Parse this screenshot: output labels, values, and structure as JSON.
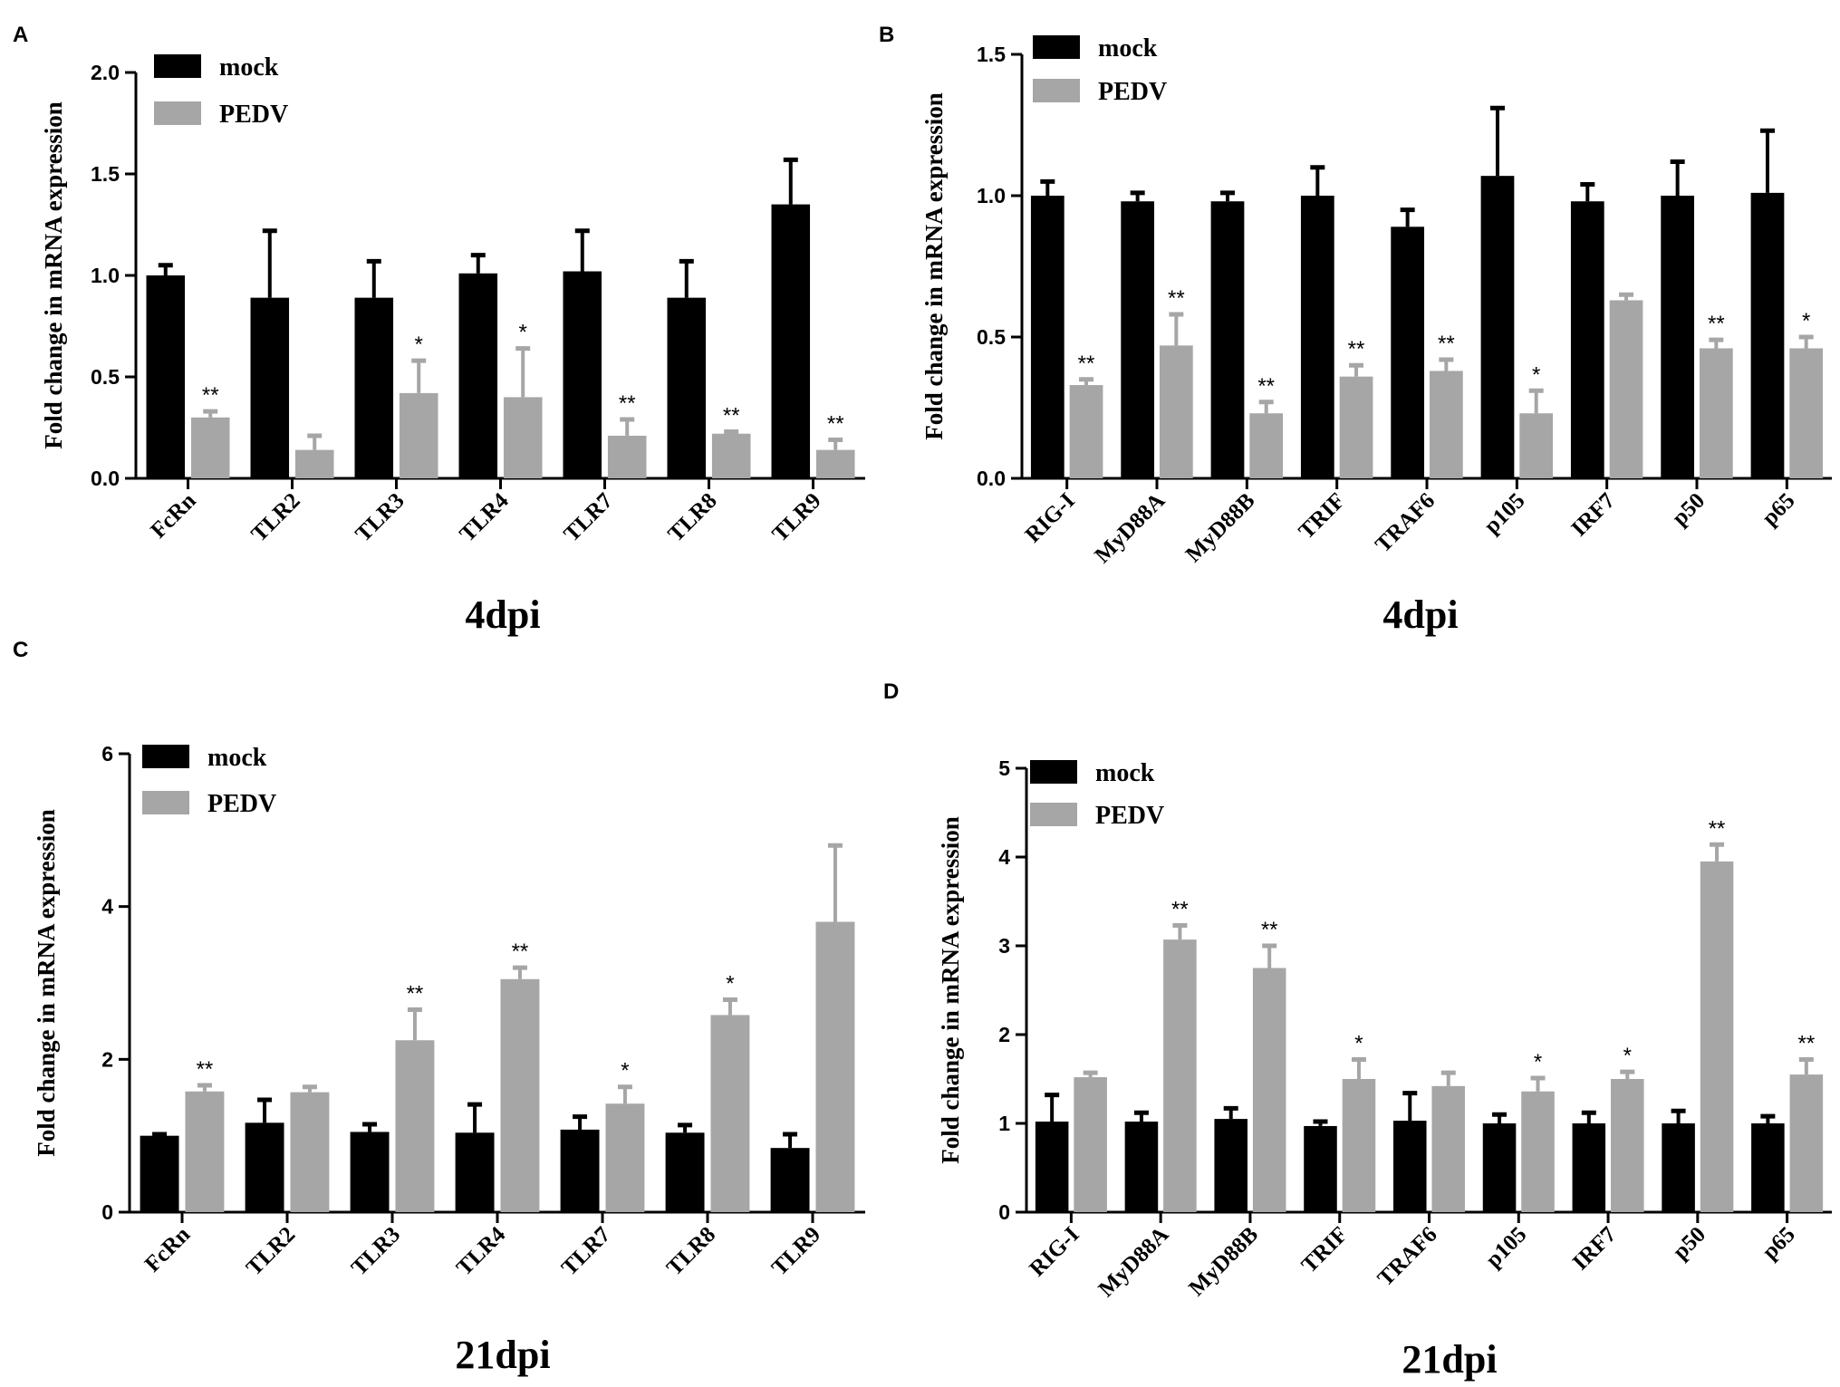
{
  "colors": {
    "mock": "#000000",
    "pedv": "#a6a6a6"
  },
  "chart_data": [
    {
      "panel": "A",
      "type": "bar",
      "title": "",
      "xlabel": "4dpi",
      "ylabel": "Fold change in mRNA expression",
      "ylim": [
        0,
        2.0
      ],
      "yticks": [
        "0.0",
        "0.5",
        "1.0",
        "1.5",
        "2.0"
      ],
      "legend": [
        "mock",
        "PEDV"
      ],
      "categories": [
        "FcRn",
        "TLR2",
        "TLR3",
        "TLR4",
        "TLR7",
        "TLR8",
        "TLR9"
      ],
      "series": [
        {
          "name": "mock",
          "values": [
            1.0,
            0.89,
            0.89,
            1.01,
            1.02,
            0.89,
            1.35
          ],
          "errors": [
            0.05,
            0.33,
            0.18,
            0.09,
            0.2,
            0.18,
            0.22
          ]
        },
        {
          "name": "PEDV",
          "values": [
            0.3,
            0.14,
            0.42,
            0.4,
            0.21,
            0.22,
            0.14
          ],
          "errors": [
            0.03,
            0.07,
            0.16,
            0.24,
            0.08,
            0.01,
            0.05
          ],
          "significance": [
            "**",
            "",
            "*",
            "*",
            "**",
            "**",
            "**"
          ]
        }
      ]
    },
    {
      "panel": "B",
      "type": "bar",
      "title": "",
      "xlabel": "4dpi",
      "ylabel": "Fold change in mRNA expression",
      "ylim": [
        0,
        1.5
      ],
      "yticks": [
        "0.0",
        "0.5",
        "1.0",
        "1.5"
      ],
      "legend": [
        "mock",
        "PEDV"
      ],
      "categories": [
        "RIG-I",
        "MyD88A",
        "MyD88B",
        "TRIF",
        "TRAF6",
        "p105",
        "IRF7",
        "p50",
        "p65"
      ],
      "series": [
        {
          "name": "mock",
          "values": [
            1.0,
            0.98,
            0.98,
            1.0,
            0.89,
            1.07,
            0.98,
            1.0,
            1.01
          ],
          "errors": [
            0.05,
            0.03,
            0.03,
            0.1,
            0.06,
            0.24,
            0.06,
            0.12,
            0.22
          ]
        },
        {
          "name": "PEDV",
          "values": [
            0.33,
            0.47,
            0.23,
            0.36,
            0.38,
            0.23,
            0.63,
            0.46,
            0.46
          ],
          "errors": [
            0.02,
            0.11,
            0.04,
            0.04,
            0.04,
            0.08,
            0.02,
            0.03,
            0.04
          ],
          "significance": [
            "**",
            "**",
            "**",
            "**",
            "**",
            "*",
            "",
            "**",
            "*"
          ]
        }
      ]
    },
    {
      "panel": "C",
      "type": "bar",
      "title": "",
      "xlabel": "21dpi",
      "ylabel": "Fold change in mRNA expression",
      "ylim": [
        0,
        6
      ],
      "yticks": [
        "0",
        "2",
        "4",
        "6"
      ],
      "legend": [
        "mock",
        "PEDV"
      ],
      "categories": [
        "FcRn",
        "TLR2",
        "TLR3",
        "TLR4",
        "TLR7",
        "TLR8",
        "TLR9"
      ],
      "series": [
        {
          "name": "mock",
          "values": [
            1.0,
            1.17,
            1.05,
            1.04,
            1.08,
            1.04,
            0.84
          ],
          "errors": [
            0.02,
            0.3,
            0.1,
            0.37,
            0.17,
            0.1,
            0.18
          ]
        },
        {
          "name": "PEDV",
          "values": [
            1.58,
            1.57,
            2.25,
            3.05,
            1.42,
            2.58,
            3.8
          ],
          "errors": [
            0.08,
            0.07,
            0.4,
            0.15,
            0.22,
            0.2,
            1.0
          ],
          "significance": [
            "**",
            "",
            "**",
            "**",
            "*",
            "*",
            ""
          ]
        }
      ]
    },
    {
      "panel": "D",
      "type": "bar",
      "title": "",
      "xlabel": "21dpi",
      "ylabel": "Fold change in mRNA expression",
      "ylim": [
        0,
        5
      ],
      "yticks": [
        "0",
        "1",
        "2",
        "3",
        "4",
        "5"
      ],
      "legend": [
        "mock",
        "PEDV"
      ],
      "categories": [
        "RIG-I",
        "MyD88A",
        "MyD88B",
        "TRIF",
        "TRAF6",
        "p105",
        "IRF7",
        "p50",
        "p65"
      ],
      "series": [
        {
          "name": "mock",
          "values": [
            1.02,
            1.02,
            1.05,
            0.97,
            1.03,
            1.0,
            1.0,
            1.0,
            1.0
          ],
          "errors": [
            0.3,
            0.1,
            0.12,
            0.05,
            0.31,
            0.1,
            0.12,
            0.14,
            0.08
          ]
        },
        {
          "name": "PEDV",
          "values": [
            1.52,
            3.07,
            2.75,
            1.5,
            1.42,
            1.36,
            1.5,
            3.95,
            1.55
          ],
          "errors": [
            0.05,
            0.16,
            0.25,
            0.22,
            0.15,
            0.15,
            0.08,
            0.19,
            0.17
          ],
          "significance": [
            "",
            "**",
            "**",
            "*",
            "",
            "*",
            "*",
            "**",
            "**"
          ]
        }
      ]
    }
  ]
}
